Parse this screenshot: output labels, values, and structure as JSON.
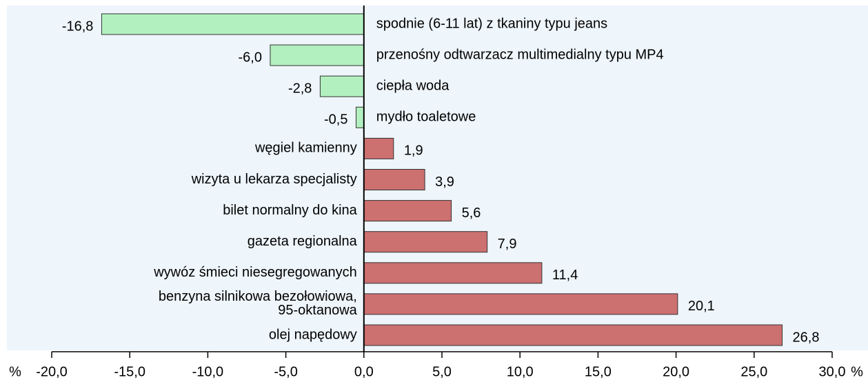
{
  "chart_data": {
    "type": "hbar",
    "categories": [
      "spodnie (6-11 lat) z tkaniny typu jeans",
      "przenośny odtwarzacz multimedialny typu MP4",
      "ciepła woda",
      "mydło toaletowe",
      "węgiel kamienny",
      "wizyta u lekarza specjalisty",
      "bilet normalny do kina",
      "gazeta regionalna",
      "wywóz śmieci niesegregowanych",
      "benzyna silnikowa bezołowiowa,\n95-oktanowa",
      "olej napędowy"
    ],
    "values": [
      -16.8,
      -6.0,
      -2.8,
      -0.5,
      1.9,
      3.9,
      5.6,
      7.9,
      11.4,
      20.1,
      26.8
    ],
    "value_labels": [
      "-16,8",
      "-6,0",
      "-2,8",
      "-0,5",
      "1,9",
      "3,9",
      "5,6",
      "7,9",
      "11,4",
      "20,1",
      "26,8"
    ],
    "negative_color": "#b3f0c0",
    "positive_color": "#cc7070",
    "xlabel": "%",
    "xlim": [
      -20,
      30
    ],
    "xticks": [
      {
        "value": -20,
        "label": "-20,0"
      },
      {
        "value": -15,
        "label": "-15,0"
      },
      {
        "value": -10,
        "label": "-10,0"
      },
      {
        "value": -5,
        "label": "-5,0"
      },
      {
        "value": 0,
        "label": "0,0"
      },
      {
        "value": 5,
        "label": "5,0"
      },
      {
        "value": 10,
        "label": "10,0"
      },
      {
        "value": 15,
        "label": "15,0"
      },
      {
        "value": 20,
        "label": "20,0"
      },
      {
        "value": 25,
        "label": "25,0"
      },
      {
        "value": 30,
        "label": "30,0"
      }
    ]
  }
}
